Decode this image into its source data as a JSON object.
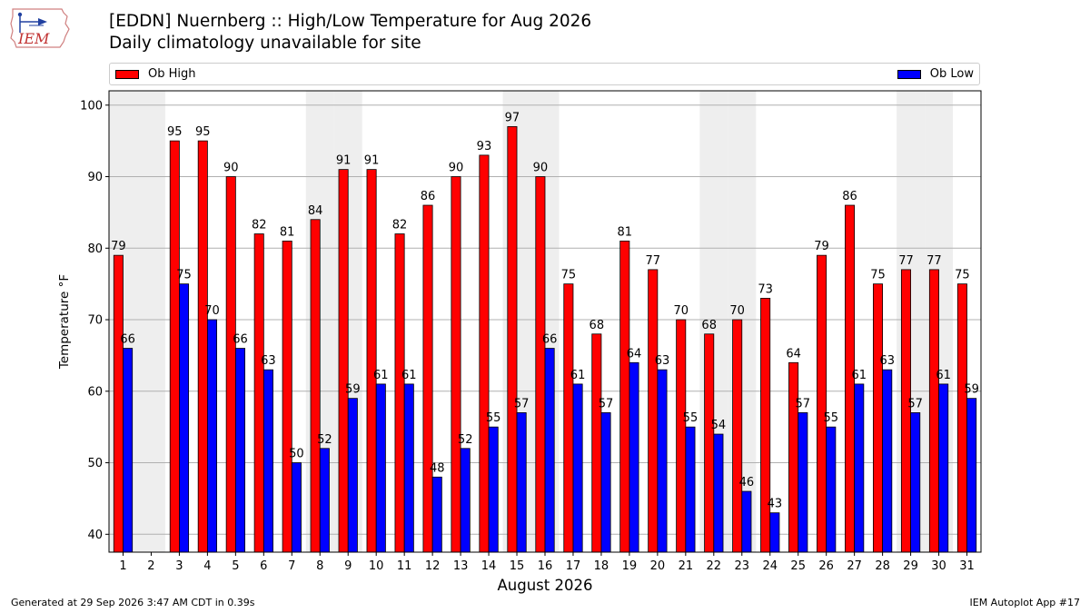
{
  "title": "[EDDN] Nuernberg :: High/Low Temperature for Aug 2026",
  "subtitle": "Daily climatology unavailable for site",
  "logo_text": "IEM",
  "footer_left": "Generated at 29 Sep 2026 3:47 AM CDT in 0.39s",
  "footer_right": "IEM Autoplot App #17",
  "colors": {
    "high": "#ff0000",
    "low": "#0000ff",
    "weekend_shade": "#eeeeee",
    "grid": "#b0b0b0"
  },
  "legend": {
    "high_label": "Ob High",
    "low_label": "Ob Low",
    "placement": "top"
  },
  "chart_data": {
    "type": "bar",
    "xlabel": "August 2026",
    "ylabel": "Temperature °F",
    "ylim": [
      37.5,
      102
    ],
    "yticks": [
      40,
      50,
      60,
      70,
      80,
      90,
      100
    ],
    "grid": true,
    "categories": [
      "1",
      "2",
      "3",
      "4",
      "5",
      "6",
      "7",
      "8",
      "9",
      "10",
      "11",
      "12",
      "13",
      "14",
      "15",
      "16",
      "17",
      "18",
      "19",
      "20",
      "21",
      "22",
      "23",
      "24",
      "25",
      "26",
      "27",
      "28",
      "29",
      "30",
      "31"
    ],
    "shaded_days": [
      1,
      2,
      8,
      9,
      15,
      16,
      22,
      23,
      29,
      30
    ],
    "series": [
      {
        "name": "Ob High",
        "values": [
          79,
          null,
          95,
          95,
          90,
          82,
          81,
          84,
          91,
          91,
          82,
          86,
          90,
          93,
          97,
          90,
          75,
          68,
          81,
          77,
          70,
          68,
          70,
          73,
          64,
          79,
          86,
          75,
          77,
          77,
          75
        ],
        "labels": [
          "79",
          "",
          "95",
          "95",
          "90",
          "82",
          "81",
          "84",
          "91",
          "91",
          "82",
          "86",
          "90",
          "93",
          "97",
          "90",
          "75",
          "68",
          "81",
          "77",
          "70",
          "68",
          "70",
          "73",
          "64",
          "79",
          "86",
          "75",
          "77",
          "77",
          "75"
        ]
      },
      {
        "name": "Ob Low",
        "values": [
          66,
          null,
          75,
          70,
          66,
          63,
          50,
          52,
          59,
          61,
          61,
          48,
          52,
          55,
          57,
          66,
          61,
          57,
          64,
          63,
          55,
          54,
          46,
          43,
          57,
          55,
          61,
          63,
          57,
          61,
          59
        ],
        "labels": [
          "66",
          "",
          "75",
          "70",
          "66",
          "63",
          "50",
          "52",
          "59",
          "61",
          "61",
          "48",
          "52",
          "55",
          "57",
          "66",
          "61",
          "57",
          "64",
          "63",
          "55",
          "54",
          "46",
          "43",
          "57",
          "55",
          "61",
          "63",
          "57",
          "61",
          "59"
        ]
      }
    ]
  }
}
